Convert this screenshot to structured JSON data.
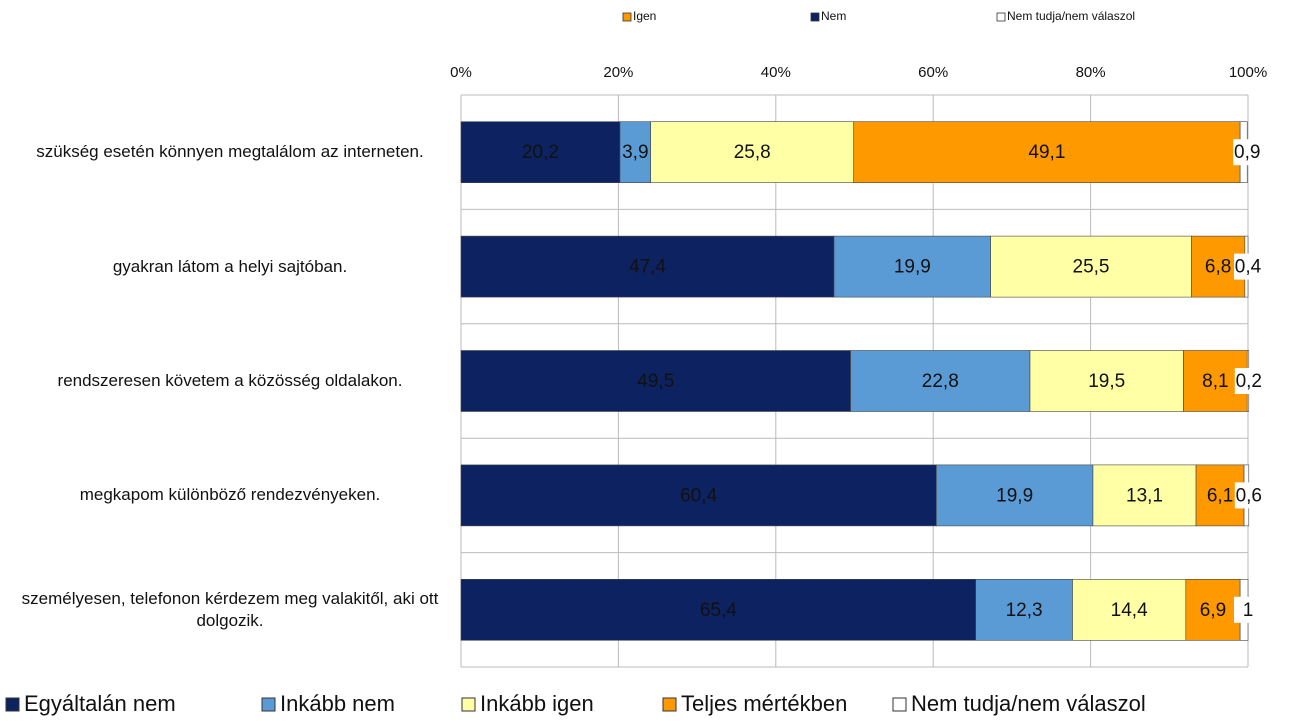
{
  "chart_data": {
    "type": "stacked_barh",
    "top_legend": [
      {
        "name": "Igen",
        "color": "#ff9900"
      },
      {
        "name": "Nem",
        "color": "#0d2361"
      },
      {
        "name": "Nem tudja/nem válaszol",
        "color": "#ffffff"
      }
    ],
    "categories": [
      "szükség esetén könnyen megtalálom az interneten.",
      "gyakran látom a helyi sajtóban.",
      "rendszeresen követem a közösség oldalakon.",
      "megkapom különböző rendezvényeken.",
      "személyesen, telefonon kérdezem meg valakitől, aki ott dolgozik."
    ],
    "series": [
      {
        "name": "Egyáltalán nem",
        "color": "#0d2361",
        "values": [
          20.2,
          47.4,
          49.5,
          60.4,
          65.4
        ],
        "value_labels": [
          "20,2",
          "47,4",
          "49,5",
          "60,4",
          "65,4"
        ]
      },
      {
        "name": "Inkább nem",
        "color": "#5b9bd5",
        "values": [
          3.9,
          19.9,
          22.8,
          19.9,
          12.3
        ],
        "value_labels": [
          "3,9",
          "19,9",
          "22,8",
          "19,9",
          "12,3"
        ]
      },
      {
        "name": "Inkább igen",
        "color": "#ffffa6",
        "values": [
          25.8,
          25.5,
          19.5,
          13.1,
          14.4
        ],
        "value_labels": [
          "25,8",
          "25,5",
          "19,5",
          "13,1",
          "14,4"
        ]
      },
      {
        "name": "Teljes mértékben",
        "color": "#ff9900",
        "values": [
          49.1,
          6.8,
          8.1,
          6.1,
          6.9
        ],
        "value_labels": [
          "49,1",
          "6,8",
          "8,1",
          "6,1",
          "6,9"
        ]
      },
      {
        "name": "Nem tudja/nem válaszol",
        "color": "#ffffff",
        "values": [
          0.9,
          0.4,
          0.2,
          0.6,
          1
        ],
        "value_labels": [
          "0,9",
          "0,4",
          "0,2",
          "0,6",
          "1"
        ]
      }
    ],
    "xlim": [
      0,
      100
    ],
    "xticks": [
      {
        "value": 0,
        "label": "0%"
      },
      {
        "value": 20,
        "label": "20%"
      },
      {
        "value": 40,
        "label": "40%"
      },
      {
        "value": 60,
        "label": "60%"
      },
      {
        "value": 80,
        "label": "80%"
      },
      {
        "value": 100,
        "label": "100%"
      }
    ],
    "grid": true
  }
}
